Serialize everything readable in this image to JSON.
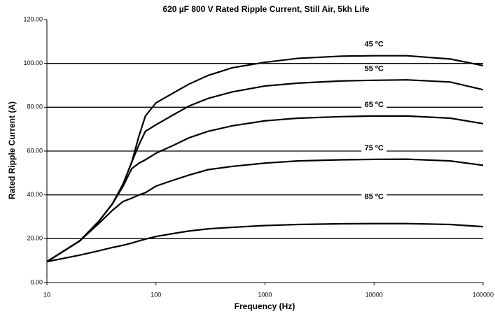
{
  "chart_data": {
    "type": "line",
    "title": "620 µF 800 V Rated Ripple Current, Still Air,  5kh Life",
    "x_label": "Frequency (Hz)",
    "y_label": "Rated Ripple Current (A)",
    "x": [
      10,
      20,
      30,
      40,
      50,
      60,
      70,
      80,
      100,
      150,
      200,
      300,
      500,
      1000,
      2000,
      5000,
      10000,
      20000,
      50000,
      100000
    ],
    "series": [
      {
        "name": "45 ºC",
        "color": "#000000",
        "values": [
          9.5,
          19,
          28,
          36,
          45,
          55,
          67,
          76,
          82,
          87,
          90.5,
          94.5,
          98,
          100.5,
          102.3,
          103.3,
          103.5,
          103.5,
          102,
          99
        ]
      },
      {
        "name": "55 ºC",
        "color": "#000000",
        "values": [
          9.5,
          19,
          28,
          36,
          45,
          55,
          63,
          69,
          72,
          77,
          80.5,
          84,
          87,
          89.7,
          91,
          92,
          92.3,
          92.5,
          91.5,
          88
        ]
      },
      {
        "name": "65 ºC",
        "color": "#000000",
        "values": [
          9.5,
          19,
          28,
          36,
          44,
          52,
          54.5,
          56,
          59,
          63,
          66,
          69,
          71.5,
          73.8,
          75,
          75.7,
          76,
          76,
          75,
          72.5
        ]
      },
      {
        "name": "75 ºC",
        "color": "#000000",
        "values": [
          9.5,
          19,
          27,
          33,
          37,
          38.5,
          40,
          41,
          44,
          47,
          49,
          51.5,
          53,
          54.5,
          55.5,
          56,
          56.2,
          56.3,
          55.5,
          53.5
        ]
      },
      {
        "name": "85 ºC",
        "color": "#000000",
        "values": [
          9.5,
          12.5,
          14.5,
          16,
          17,
          18,
          19,
          19.8,
          21,
          22.5,
          23.5,
          24.5,
          25.2,
          26,
          26.5,
          26.8,
          26.9,
          26.9,
          26.5,
          25.5
        ]
      }
    ],
    "xscale": "log",
    "xlim": [
      10,
      100000
    ],
    "xticks": [
      10,
      100,
      1000,
      10000,
      100000
    ],
    "ylim": [
      0,
      120
    ],
    "yticks": [
      {
        "value": 0,
        "label": "0.00"
      },
      {
        "value": 20,
        "label": "20.00"
      },
      {
        "value": 40,
        "label": "40.00"
      },
      {
        "value": 60,
        "label": "60.00"
      },
      {
        "value": 80,
        "label": "80.00"
      },
      {
        "value": 100,
        "label": "100.00"
      },
      {
        "value": 120,
        "label": "120.00"
      }
    ],
    "grid": true
  }
}
